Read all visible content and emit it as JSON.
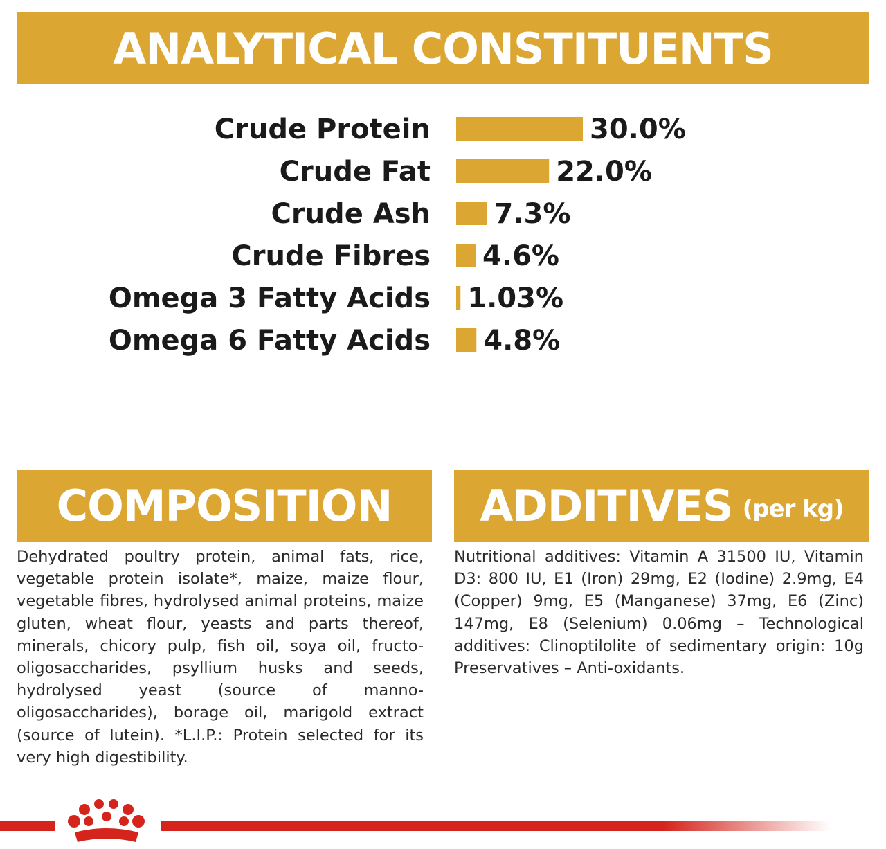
{
  "analytical": {
    "title": "ANALYTICAL CONSTITUENTS"
  },
  "chart_data": {
    "type": "bar",
    "orientation": "horizontal",
    "categories": [
      "Crude Protein",
      "Crude Fat",
      "Crude Ash",
      "Crude Fibres",
      "Omega 3 Fatty Acids",
      "Omega 6 Fatty Acids"
    ],
    "values": [
      30.0,
      22.0,
      7.3,
      4.6,
      1.03,
      4.8
    ],
    "value_labels": [
      "30.0%",
      "22.0%",
      "7.3%",
      "4.6%",
      "1.03%",
      "4.8%"
    ],
    "bar_color": "#dca633"
  },
  "composition": {
    "title": "COMPOSITION",
    "text": "Dehydrated poultry protein, animal fats, rice, vegetable protein isolate*, maize, maize flour, vegetable fibres, hydrolysed animal proteins, maize gluten, wheat flour, yeasts and parts thereof, minerals, chicory pulp, fish oil, soya oil, fructo-oligosaccharides, psyllium husks and seeds, hydrolysed yeast (source of manno-oligosaccharides), borage oil, marigold extract (source of lutein). *L.I.P.: Protein selected for its very high digestibility."
  },
  "additives": {
    "title": "ADDITIVES",
    "subtitle": "(per kg)",
    "text": "Nutritional additives: Vitamin A 31500 IU, Vitamin D3: 800 IU, E1 (Iron) 29mg, E2 (Iodine) 2.9mg, E4 (Copper) 9mg, E5 (Manganese) 37mg, E6 (Zinc) 147mg, E8 (Selenium) 0.06mg – Technological additives: Clinoptilolite of sedimentary origin: 10g Preservatives – Anti-oxidants."
  },
  "colors": {
    "accent": "#dca633",
    "brand_red": "#d4241c"
  },
  "icons": {
    "footer_logo": "crown-icon"
  }
}
